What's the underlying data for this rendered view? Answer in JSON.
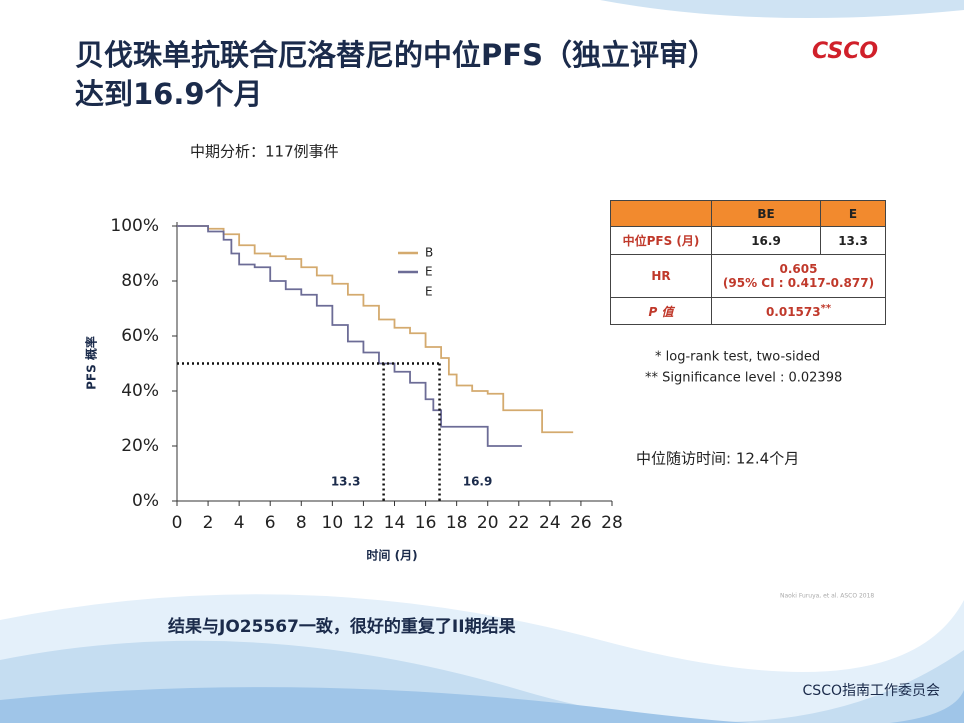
{
  "slide": {
    "title_line1": "贝伐珠单抗联合厄洛替尼的中位PFS（独立评审）",
    "title_line2": "达到16.9个月",
    "logo": "CSCO",
    "subtitle": "中期分析：117例事件",
    "table": {
      "header": [
        "BE",
        "E"
      ],
      "rows": [
        [
          "中位PFS (月)",
          "16.9",
          "13.3"
        ],
        [
          "HR",
          "0.605",
          "(95% CI : 0.417-0.877)"
        ],
        [
          "P 值",
          "0.01573",
          "**"
        ]
      ]
    },
    "footnotes": [
      "* log-rank test, two-sided",
      "** Significance level : 0.02398"
    ],
    "followup": "中位随访时间: 12.4个月",
    "citation": "Naoki Furuya, et al. ASCO 2018",
    "conclusion": "结果与JO25567一致，很好的重复了II期结果",
    "footer": "CSCO指南工作委员会"
  },
  "chart_data": {
    "type": "step",
    "x_label": "时间 (月)",
    "y_label": "PFS 概率",
    "xlim": [
      0,
      28
    ],
    "xticks": [
      0,
      2,
      4,
      6,
      8,
      10,
      12,
      14,
      16,
      18,
      20,
      22,
      24,
      26,
      28
    ],
    "ylim": [
      0,
      100
    ],
    "yticks": [
      {
        "value": 0,
        "label": "0%"
      },
      {
        "value": 20,
        "label": "20%"
      },
      {
        "value": 40,
        "label": "40%"
      },
      {
        "value": 60,
        "label": "60%"
      },
      {
        "value": 80,
        "label": "80%"
      },
      {
        "value": 100,
        "label": "100%"
      }
    ],
    "series": [
      {
        "name": "B",
        "color": "#d4aa6e",
        "x": [
          0,
          2,
          3,
          4,
          5,
          6,
          7,
          8,
          9,
          10,
          11,
          12,
          13,
          14,
          15,
          16,
          17,
          17.5,
          18,
          19,
          20,
          21,
          23,
          23.5,
          25.5
        ],
        "values": [
          100,
          99,
          97,
          93,
          90,
          89,
          88,
          85,
          82,
          79,
          75,
          71,
          66,
          63,
          61,
          56,
          52,
          46,
          42,
          40,
          39,
          33,
          33,
          25,
          25
        ]
      },
      {
        "name": "E",
        "color": "#6c6c96",
        "x": [
          0,
          2,
          3,
          3.5,
          4,
          5,
          6,
          7,
          8,
          9,
          10,
          11,
          12,
          13,
          14,
          15,
          16,
          16.5,
          17,
          19,
          20,
          22.2
        ],
        "values": [
          100,
          98,
          95,
          90,
          86,
          85,
          80,
          77,
          75,
          71,
          64,
          58,
          54,
          50,
          47,
          43,
          37,
          33,
          27,
          27,
          20,
          20
        ]
      }
    ],
    "legend_extra": "E",
    "median_y": 50,
    "medians": [
      13.3,
      16.9
    ]
  }
}
